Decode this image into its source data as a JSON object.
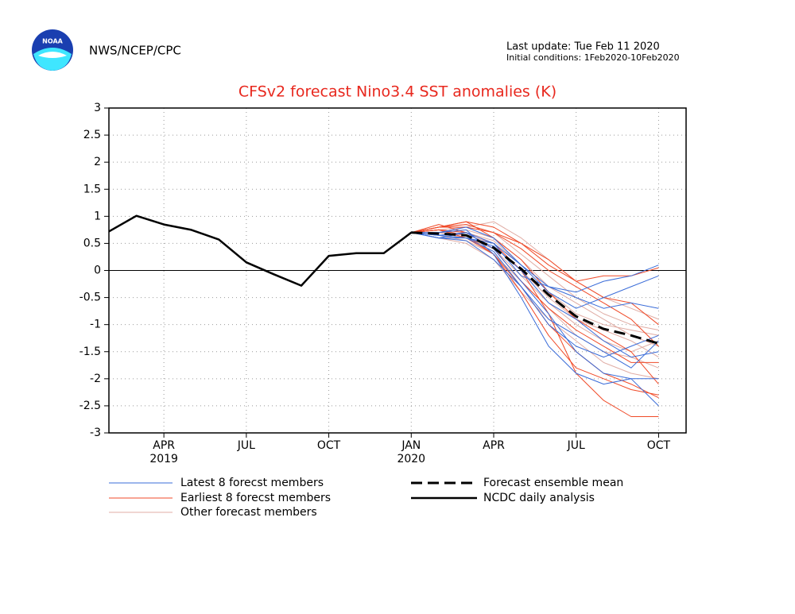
{
  "header": {
    "logo_text": "NOAA",
    "source": "NWS/NCEP/CPC",
    "update": "Last update: Tue Feb 11 2020",
    "conditions": "Initial conditions: 1Feb2020-10Feb2020"
  },
  "chart_data": {
    "type": "line",
    "title": "CFSv2 forecast Nino3.4 SST anomalies (K)",
    "x": [
      "2019-02",
      "2019-03",
      "2019-04",
      "2019-05",
      "2019-06",
      "2019-07",
      "2019-08",
      "2019-09",
      "2019-10",
      "2019-11",
      "2019-12",
      "2020-01",
      "2020-02",
      "2020-03",
      "2020-04",
      "2020-05",
      "2020-06",
      "2020-07",
      "2020-08",
      "2020-09",
      "2020-10"
    ],
    "xlim": [
      "2019-02",
      "2020-11"
    ],
    "xticks": [
      {
        "value": "2019-04",
        "label": "APR",
        "year": "2019"
      },
      {
        "value": "2019-07",
        "label": "JUL"
      },
      {
        "value": "2019-10",
        "label": "OCT"
      },
      {
        "value": "2020-01",
        "label": "JAN",
        "year": "2020"
      },
      {
        "value": "2020-04",
        "label": "APR"
      },
      {
        "value": "2020-07",
        "label": "JUL"
      },
      {
        "value": "2020-10",
        "label": "OCT"
      }
    ],
    "ylim": [
      -3,
      3
    ],
    "yticks": [
      3,
      2.5,
      2,
      1.5,
      1,
      0.5,
      0,
      -0.5,
      -1,
      -1.5,
      -2,
      -2.5,
      -3
    ],
    "grid": true,
    "series": [
      {
        "name": "Latest 8 forecst members",
        "color": "#3a6cd8",
        "width": 1,
        "members": [
          [
            null,
            null,
            null,
            null,
            null,
            null,
            null,
            null,
            null,
            null,
            null,
            0.7,
            0.65,
            0.6,
            0.5,
            0.1,
            -0.3,
            -0.4,
            -0.2,
            -0.1,
            0.1
          ],
          [
            null,
            null,
            null,
            null,
            null,
            null,
            null,
            null,
            null,
            null,
            null,
            0.7,
            0.6,
            0.7,
            0.4,
            -0.2,
            -0.8,
            -1.5,
            -1.9,
            -2.0,
            -2.5
          ],
          [
            null,
            null,
            null,
            null,
            null,
            null,
            null,
            null,
            null,
            null,
            null,
            0.7,
            0.7,
            0.75,
            0.3,
            -0.5,
            -1.4,
            -1.9,
            -2.1,
            -2.0,
            -2.0
          ],
          [
            null,
            null,
            null,
            null,
            null,
            null,
            null,
            null,
            null,
            null,
            null,
            0.7,
            0.65,
            0.6,
            0.45,
            0.0,
            -0.6,
            -0.9,
            -1.3,
            -1.6,
            -1.5
          ],
          [
            null,
            null,
            null,
            null,
            null,
            null,
            null,
            null,
            null,
            null,
            null,
            0.7,
            0.6,
            0.55,
            0.2,
            -0.3,
            -0.9,
            -1.2,
            -1.5,
            -1.8,
            -1.3
          ],
          [
            null,
            null,
            null,
            null,
            null,
            null,
            null,
            null,
            null,
            null,
            null,
            0.7,
            0.7,
            0.8,
            0.6,
            0.1,
            -0.4,
            -0.7,
            -0.5,
            -0.3,
            -0.1
          ],
          [
            null,
            null,
            null,
            null,
            null,
            null,
            null,
            null,
            null,
            null,
            null,
            0.7,
            0.65,
            0.7,
            0.5,
            -0.1,
            -0.3,
            -0.5,
            -0.7,
            -0.6,
            -0.7
          ],
          [
            null,
            null,
            null,
            null,
            null,
            null,
            null,
            null,
            null,
            null,
            null,
            0.7,
            0.6,
            0.6,
            0.35,
            -0.3,
            -1.0,
            -1.4,
            -1.6,
            -1.4,
            -1.2
          ]
        ]
      },
      {
        "name": "Earliest 8 forecst members",
        "color": "#f04a28",
        "width": 1,
        "members": [
          [
            null,
            null,
            null,
            null,
            null,
            null,
            null,
            null,
            null,
            null,
            null,
            0.7,
            0.8,
            0.8,
            0.7,
            0.5,
            0.1,
            -0.2,
            -0.5,
            -0.6,
            -1.0
          ],
          [
            null,
            null,
            null,
            null,
            null,
            null,
            null,
            null,
            null,
            null,
            null,
            0.7,
            0.85,
            0.7,
            0.5,
            0.0,
            -0.8,
            -1.9,
            -2.4,
            -2.7,
            -2.7
          ],
          [
            null,
            null,
            null,
            null,
            null,
            null,
            null,
            null,
            null,
            null,
            null,
            0.7,
            0.8,
            0.9,
            0.6,
            0.2,
            -0.4,
            -0.9,
            -1.2,
            -1.5,
            -2.1
          ],
          [
            null,
            null,
            null,
            null,
            null,
            null,
            null,
            null,
            null,
            null,
            null,
            0.7,
            0.75,
            0.6,
            0.3,
            -0.4,
            -1.2,
            -1.8,
            -2.0,
            -2.2,
            -2.3
          ],
          [
            null,
            null,
            null,
            null,
            null,
            null,
            null,
            null,
            null,
            null,
            null,
            0.7,
            0.8,
            0.85,
            0.7,
            0.4,
            0.0,
            -0.3,
            -0.6,
            -0.9,
            -1.4
          ],
          [
            null,
            null,
            null,
            null,
            null,
            null,
            null,
            null,
            null,
            null,
            null,
            0.7,
            0.75,
            0.7,
            0.4,
            -0.2,
            -0.7,
            -1.1,
            -1.4,
            -1.7,
            -1.7
          ],
          [
            null,
            null,
            null,
            null,
            null,
            null,
            null,
            null,
            null,
            null,
            null,
            0.7,
            0.8,
            0.9,
            0.8,
            0.5,
            0.2,
            -0.2,
            -0.1,
            -0.1,
            0.05
          ],
          [
            null,
            null,
            null,
            null,
            null,
            null,
            null,
            null,
            null,
            null,
            null,
            0.7,
            0.75,
            0.65,
            0.3,
            -0.3,
            -1.0,
            -1.5,
            -1.9,
            -2.1,
            -2.35
          ]
        ]
      },
      {
        "name": "Other forecast members",
        "color": "#e0aca4",
        "width": 1,
        "members": [
          [
            null,
            null,
            null,
            null,
            null,
            null,
            null,
            null,
            null,
            null,
            null,
            0.7,
            0.7,
            0.65,
            0.5,
            0.0,
            -0.5,
            -0.9,
            -1.1,
            -1.3,
            -1.6
          ],
          [
            null,
            null,
            null,
            null,
            null,
            null,
            null,
            null,
            null,
            null,
            null,
            0.7,
            0.75,
            0.8,
            0.9,
            0.6,
            0.2,
            -0.2,
            -0.5,
            -0.7,
            -0.9
          ],
          [
            null,
            null,
            null,
            null,
            null,
            null,
            null,
            null,
            null,
            null,
            null,
            0.7,
            0.65,
            0.55,
            0.3,
            -0.2,
            -0.7,
            -1.2,
            -1.5,
            -1.6,
            -1.8
          ],
          [
            null,
            null,
            null,
            null,
            null,
            null,
            null,
            null,
            null,
            null,
            null,
            0.7,
            0.7,
            0.75,
            0.6,
            0.2,
            -0.3,
            -0.6,
            -0.9,
            -1.2,
            -1.4
          ],
          [
            null,
            null,
            null,
            null,
            null,
            null,
            null,
            null,
            null,
            null,
            null,
            0.7,
            0.6,
            0.5,
            0.2,
            -0.4,
            -0.9,
            -1.3,
            -1.7,
            -1.9,
            -2.0
          ],
          [
            null,
            null,
            null,
            null,
            null,
            null,
            null,
            null,
            null,
            null,
            null,
            0.7,
            0.8,
            0.85,
            0.7,
            0.3,
            -0.1,
            -0.5,
            -0.8,
            -1.0,
            -1.1
          ],
          [
            null,
            null,
            null,
            null,
            null,
            null,
            null,
            null,
            null,
            null,
            null,
            0.7,
            0.7,
            0.6,
            0.4,
            -0.1,
            -0.6,
            -1.0,
            -1.3,
            -1.5,
            -1.3
          ],
          [
            null,
            null,
            null,
            null,
            null,
            null,
            null,
            null,
            null,
            null,
            null,
            0.7,
            0.75,
            0.7,
            0.55,
            0.1,
            -0.4,
            -0.8,
            -1.0,
            -1.1,
            -1.2
          ]
        ]
      },
      {
        "name": "Forecast ensemble mean",
        "color": "#000000",
        "width": 3,
        "style": "dashed",
        "values": [
          null,
          null,
          null,
          null,
          null,
          null,
          null,
          null,
          null,
          null,
          null,
          0.7,
          0.68,
          0.65,
          0.42,
          0.03,
          -0.45,
          -0.85,
          -1.08,
          -1.2,
          -1.35
        ]
      },
      {
        "name": "NCDC daily analysis",
        "color": "#000000",
        "width": 2.5,
        "style": "solid",
        "values": [
          0.72,
          1.01,
          0.85,
          0.75,
          0.57,
          0.15,
          -0.07,
          -0.28,
          0.27,
          0.32,
          0.32,
          0.7,
          null,
          null,
          null,
          null,
          null,
          null,
          null,
          null,
          null
        ]
      }
    ]
  }
}
